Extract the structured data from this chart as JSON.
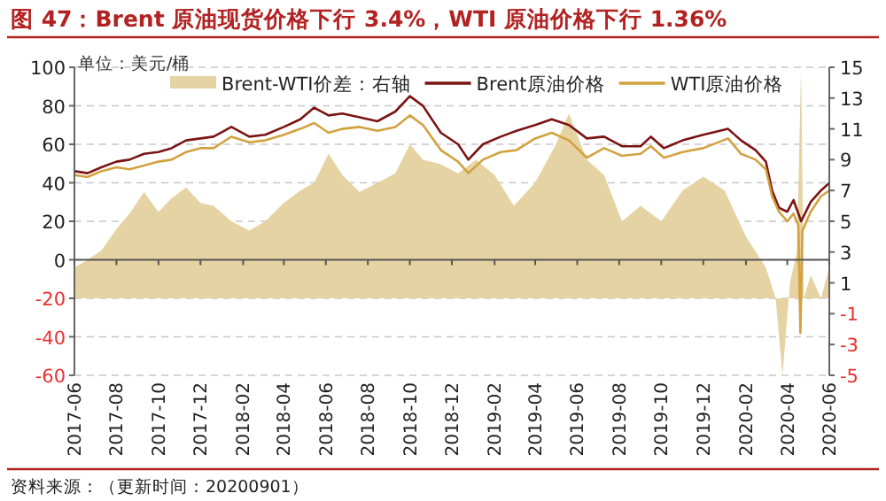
{
  "chart_data": {
    "type": "line",
    "title": "图 47：Brent 原油现货价格下行 3.4%，WTI 原油价格下行 1.36%",
    "ylabel": "单位：美元/桶",
    "annotations": [
      "资料来源：（更新时间：20200901）"
    ],
    "xlim": [
      "2017-06-01",
      "2020-06-01"
    ],
    "xticks": [
      "2017-06",
      "2017-08",
      "2017-10",
      "2017-12",
      "2018-02",
      "2018-04",
      "2018-06",
      "2018-08",
      "2018-10",
      "2018-12",
      "2019-02",
      "2019-04",
      "2019-06",
      "2019-08",
      "2019-10",
      "2019-12",
      "2020-02",
      "2020-04",
      "2020-06"
    ],
    "ylim": [
      -60,
      100
    ],
    "yticks": [
      -60,
      -40,
      -20,
      0,
      20,
      40,
      60,
      80,
      100
    ],
    "y2lim": [
      -5,
      15
    ],
    "y2ticks": [
      -5,
      -3,
      -1,
      1,
      3,
      5,
      7,
      9,
      11,
      13,
      15
    ],
    "grid": "y",
    "legend": "top",
    "series": [
      {
        "name": "Brent-WTI价差：右轴",
        "type": "area",
        "axis": "y2",
        "color": "#e6d3a3",
        "x": [
          "2017-06-01",
          "2017-06-20",
          "2017-07-10",
          "2017-08-01",
          "2017-08-20",
          "2017-09-10",
          "2017-10-01",
          "2017-10-20",
          "2017-11-10",
          "2017-12-01",
          "2017-12-20",
          "2018-01-15",
          "2018-02-10",
          "2018-03-05",
          "2018-04-01",
          "2018-04-25",
          "2018-05-15",
          "2018-06-05",
          "2018-06-25",
          "2018-07-20",
          "2018-08-15",
          "2018-09-10",
          "2018-10-01",
          "2018-10-20",
          "2018-11-15",
          "2018-12-10",
          "2019-01-05",
          "2019-02-01",
          "2019-03-01",
          "2019-04-01",
          "2019-05-01",
          "2019-05-20",
          "2019-06-15",
          "2019-07-10",
          "2019-08-05",
          "2019-09-01",
          "2019-10-01",
          "2019-11-01",
          "2019-12-01",
          "2020-01-01",
          "2020-02-01",
          "2020-03-01",
          "2020-03-15",
          "2020-03-25",
          "2020-04-05",
          "2020-04-15",
          "2020-04-21",
          "2020-04-25",
          "2020-05-05",
          "2020-05-20",
          "2020-06-01"
        ],
        "values": [
          2,
          2.5,
          3.1,
          4.5,
          5.5,
          6.9,
          5.6,
          6.5,
          7.2,
          6.2,
          6,
          5,
          4.4,
          5,
          6.2,
          7,
          7.5,
          9.4,
          8,
          6.9,
          7.5,
          8.1,
          10,
          9,
          8.7,
          8.1,
          9,
          8,
          6,
          7.5,
          10,
          12,
          9,
          8,
          5,
          6,
          5,
          7,
          7.9,
          7,
          4,
          2,
          0,
          -5,
          1,
          3,
          15,
          0,
          1.5,
          0,
          2
        ]
      },
      {
        "name": "Brent原油价格",
        "type": "line",
        "axis": "y",
        "color": "#7b1414",
        "x": [
          "2017-06-01",
          "2017-06-20",
          "2017-07-10",
          "2017-08-01",
          "2017-08-20",
          "2017-09-10",
          "2017-10-01",
          "2017-10-20",
          "2017-11-10",
          "2017-12-01",
          "2017-12-20",
          "2018-01-15",
          "2018-02-10",
          "2018-03-05",
          "2018-04-01",
          "2018-04-25",
          "2018-05-15",
          "2018-06-05",
          "2018-06-25",
          "2018-07-20",
          "2018-08-15",
          "2018-09-10",
          "2018-10-01",
          "2018-10-20",
          "2018-11-15",
          "2018-12-10",
          "2018-12-25",
          "2019-01-15",
          "2019-02-10",
          "2019-03-05",
          "2019-04-01",
          "2019-04-25",
          "2019-05-20",
          "2019-06-15",
          "2019-07-10",
          "2019-08-05",
          "2019-09-01",
          "2019-09-16",
          "2019-10-05",
          "2019-11-01",
          "2019-12-01",
          "2020-01-06",
          "2020-01-25",
          "2020-02-15",
          "2020-03-01",
          "2020-03-10",
          "2020-03-20",
          "2020-04-01",
          "2020-04-10",
          "2020-04-21",
          "2020-05-05",
          "2020-05-20",
          "2020-06-01"
        ],
        "values": [
          46,
          45,
          48,
          51,
          52,
          55,
          56,
          58,
          62,
          63,
          64,
          69,
          64,
          65,
          69,
          73,
          79,
          75,
          76,
          74,
          72,
          77,
          85,
          80,
          66,
          60,
          52,
          60,
          64,
          67,
          70,
          73,
          70,
          63,
          64,
          59,
          59,
          64,
          58,
          62,
          65,
          68,
          62,
          57,
          51,
          36,
          27,
          25,
          31,
          20,
          30,
          36,
          40
        ]
      },
      {
        "name": "WTI原油价格",
        "type": "line",
        "axis": "y",
        "color": "#d2a240",
        "x": [
          "2017-06-01",
          "2017-06-20",
          "2017-07-10",
          "2017-08-01",
          "2017-08-20",
          "2017-09-10",
          "2017-10-01",
          "2017-10-20",
          "2017-11-10",
          "2017-12-01",
          "2017-12-20",
          "2018-01-15",
          "2018-02-10",
          "2018-03-05",
          "2018-04-01",
          "2018-04-25",
          "2018-05-15",
          "2018-06-05",
          "2018-06-25",
          "2018-07-20",
          "2018-08-15",
          "2018-09-10",
          "2018-10-01",
          "2018-10-20",
          "2018-11-15",
          "2018-12-10",
          "2018-12-25",
          "2019-01-15",
          "2019-02-10",
          "2019-03-05",
          "2019-04-01",
          "2019-04-25",
          "2019-05-20",
          "2019-06-15",
          "2019-07-10",
          "2019-08-05",
          "2019-09-01",
          "2019-09-16",
          "2019-10-05",
          "2019-11-01",
          "2019-12-01",
          "2020-01-06",
          "2020-01-25",
          "2020-02-15",
          "2020-03-01",
          "2020-03-10",
          "2020-03-20",
          "2020-04-01",
          "2020-04-10",
          "2020-04-17",
          "2020-04-20",
          "2020-04-23",
          "2020-05-05",
          "2020-05-20",
          "2020-06-01"
        ],
        "values": [
          44,
          43,
          46,
          48,
          47,
          49,
          51,
          52,
          56,
          58,
          58,
          64,
          61,
          62,
          65,
          68,
          71,
          66,
          68,
          69,
          67,
          69,
          75,
          70,
          57,
          51,
          45,
          52,
          56,
          57,
          63,
          66,
          62,
          53,
          58,
          54,
          55,
          59,
          53,
          56,
          58,
          63,
          55,
          52,
          47,
          33,
          25,
          20,
          24,
          18,
          -38,
          15,
          25,
          33,
          36
        ]
      }
    ]
  }
}
